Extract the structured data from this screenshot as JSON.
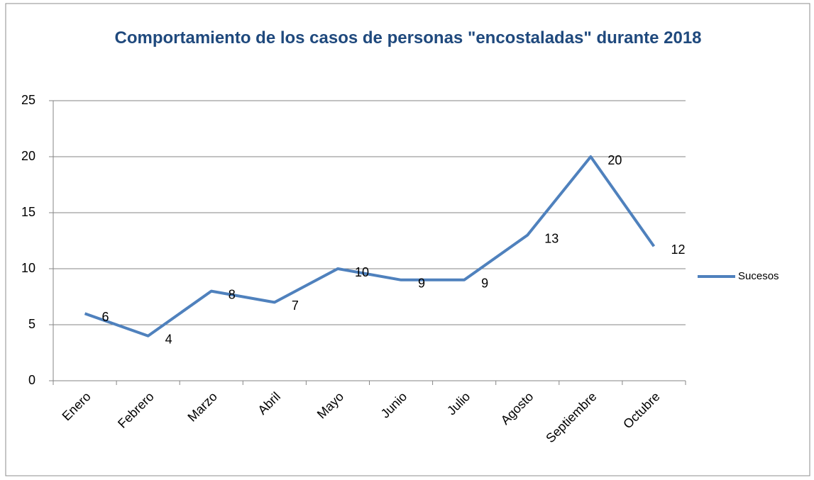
{
  "chart_data": {
    "type": "line",
    "title": "Comportamiento de los casos de personas \"encostaladas\" durante 2018",
    "categories": [
      "Enero",
      "Febrero",
      "Marzo",
      "Abril",
      "Mayo",
      "Junio",
      "Julio",
      "Agosto",
      "Septiembre",
      "Octubre"
    ],
    "series": [
      {
        "name": "Sucesos",
        "color": "#4f81bd",
        "values": [
          6,
          4,
          8,
          7,
          10,
          9,
          9,
          13,
          20,
          12
        ]
      }
    ],
    "ylim": [
      0,
      25
    ],
    "yticks": [
      0,
      5,
      10,
      15,
      20,
      25
    ],
    "grid": true,
    "legend": "right"
  }
}
